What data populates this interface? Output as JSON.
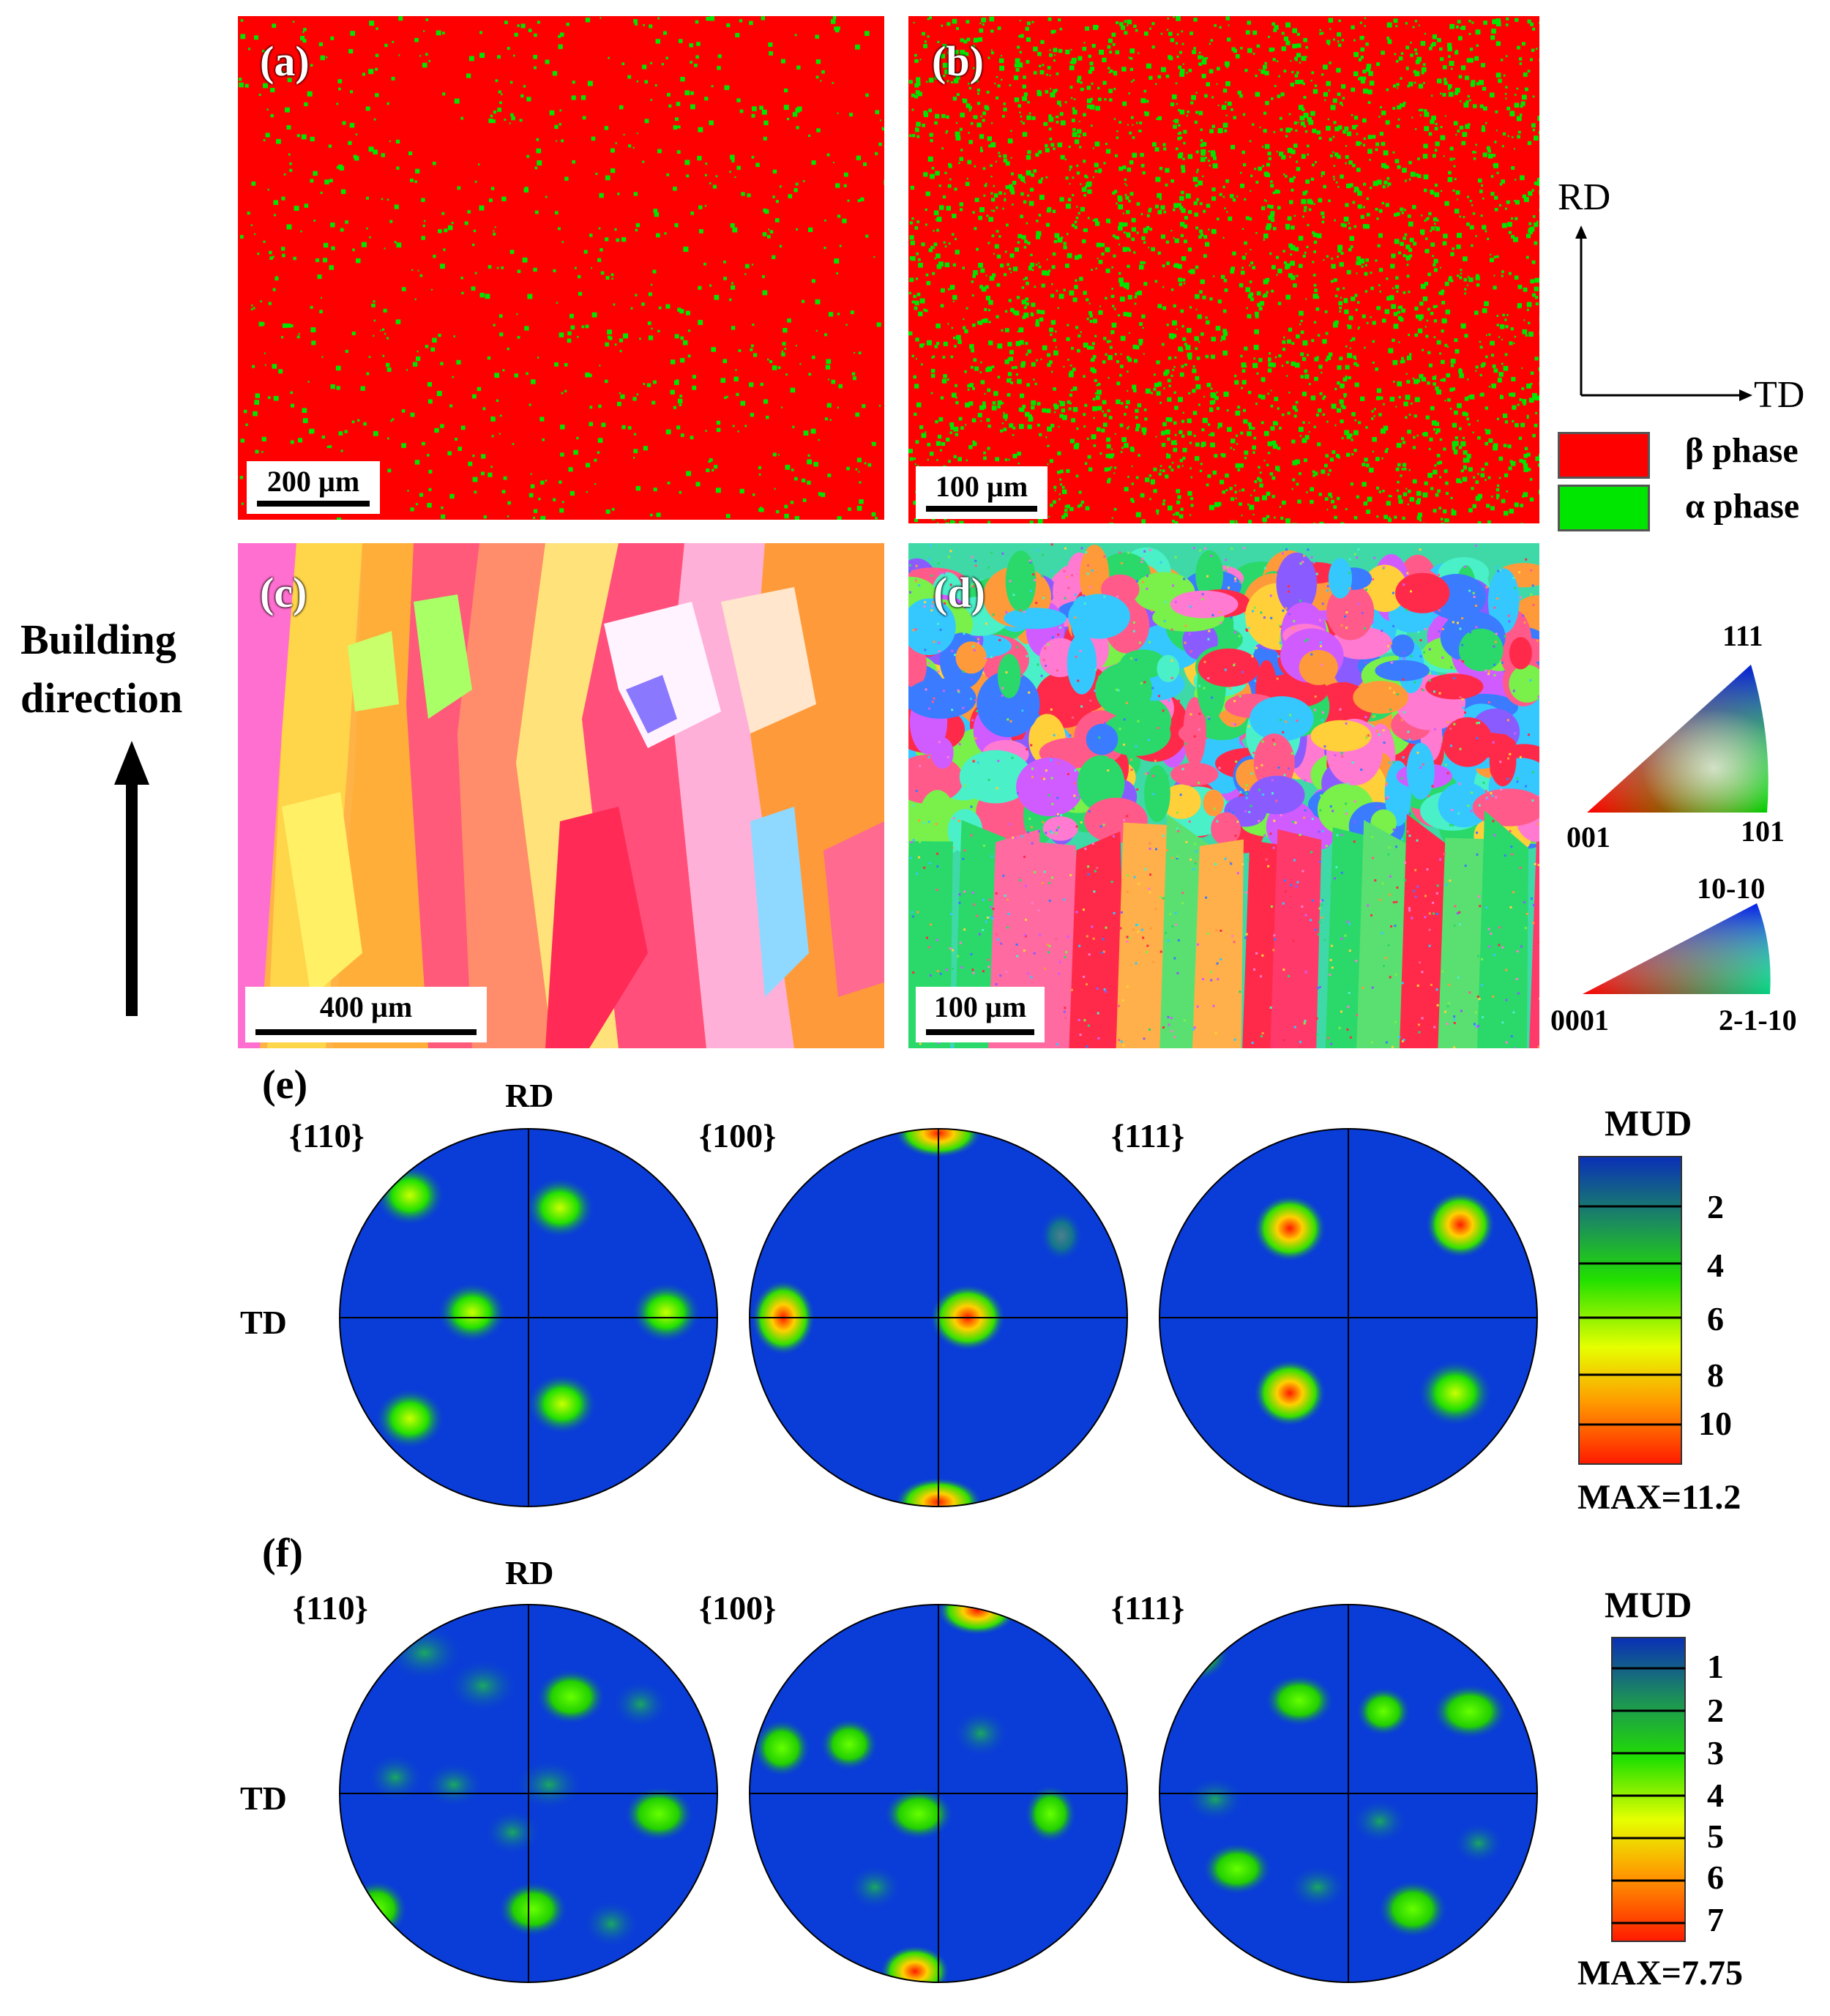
{
  "panels": {
    "a": {
      "label": "(a)",
      "scale": "200 µm"
    },
    "b": {
      "label": "(b)",
      "scale": "100 µm"
    },
    "c": {
      "label": "(c)",
      "scale": "400 µm"
    },
    "d": {
      "label": "(d)",
      "scale": "100 µm"
    }
  },
  "axes": {
    "rd": "RD",
    "td": "TD"
  },
  "phase_legend": [
    {
      "label": "β phase",
      "color": "#ff0000"
    },
    {
      "label": "α phase",
      "color": "#00e600"
    }
  ],
  "building_direction": {
    "line1": "Building",
    "line2": "direction"
  },
  "ipf_cubic": {
    "top": "111",
    "left": "001",
    "right": "101"
  },
  "ipf_hex": {
    "top": "10-10",
    "left": "0001",
    "right": "2-1-10"
  },
  "pole_figures": {
    "e": {
      "label": "(e)",
      "rd": "RD",
      "td": "TD",
      "planes": [
        "{110}",
        "{100}",
        "{111}"
      ],
      "colorbar": {
        "title": "MUD",
        "ticks": [
          "2",
          "4",
          "6",
          "8",
          "10"
        ],
        "max": "MAX=11.2"
      }
    },
    "f": {
      "label": "(f)",
      "rd": "RD",
      "td": "TD",
      "planes": [
        "{110}",
        "{100}",
        "{111}"
      ],
      "colorbar": {
        "title": "MUD",
        "ticks": [
          "1",
          "2",
          "3",
          "4",
          "5",
          "6",
          "7"
        ],
        "max": "MAX=7.75"
      }
    }
  }
}
